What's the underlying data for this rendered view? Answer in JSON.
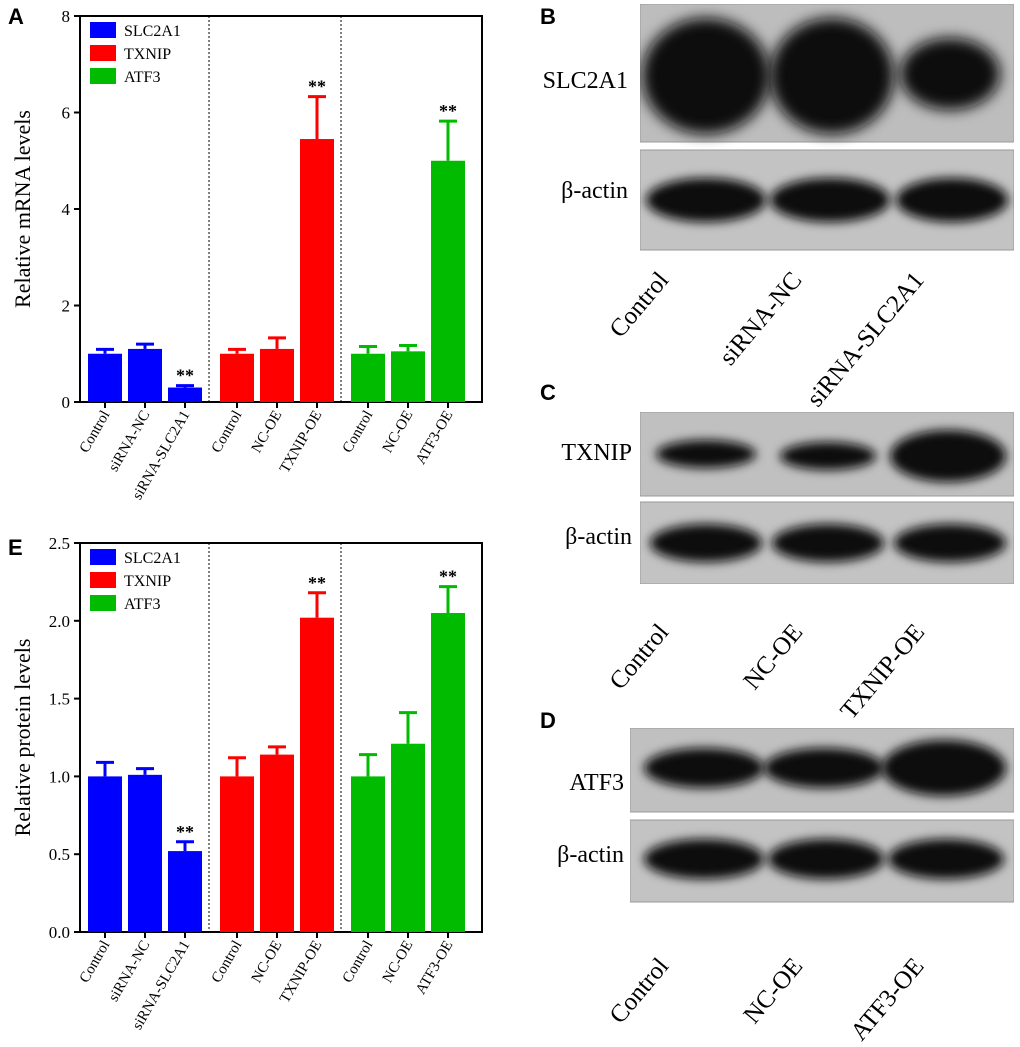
{
  "panels": {
    "a": {
      "letter": "A"
    },
    "e": {
      "letter": "E"
    },
    "b": {
      "letter": "B"
    },
    "c": {
      "letter": "C"
    },
    "d": {
      "letter": "D"
    }
  },
  "chart_data": [
    {
      "id": "A",
      "type": "bar",
      "ylabel": "Relative mRNA levels",
      "ylim": [
        0,
        8
      ],
      "yticks": [
        0,
        2,
        4,
        6,
        8
      ],
      "grid": false,
      "legend": {
        "placement": "top-left",
        "entries": [
          "SLC2A1",
          "TXNIP",
          "ATF3"
        ]
      },
      "groups": [
        {
          "series": "SLC2A1",
          "color": "#0000ff",
          "categories": [
            "Control",
            "siRNA-NC",
            "siRNA-SLC2A1"
          ],
          "values": [
            1.0,
            1.1,
            0.3
          ],
          "errors": [
            0.09,
            0.1,
            0.04
          ],
          "significance": [
            "",
            "",
            "**"
          ]
        },
        {
          "series": "TXNIP",
          "color": "#ff0000",
          "categories": [
            "Control",
            "NC-OE",
            "TXNIP-OE"
          ],
          "values": [
            1.0,
            1.1,
            5.45
          ],
          "errors": [
            0.09,
            0.23,
            0.88
          ],
          "significance": [
            "",
            "",
            "**"
          ]
        },
        {
          "series": "ATF3",
          "color": "#00bb00",
          "categories": [
            "Control",
            "NC-OE",
            "ATF3-OE"
          ],
          "values": [
            1.0,
            1.05,
            5.0
          ],
          "errors": [
            0.15,
            0.12,
            0.82
          ],
          "significance": [
            "",
            "",
            "**"
          ]
        }
      ]
    },
    {
      "id": "E",
      "type": "bar",
      "ylabel": "Relative protein levels",
      "ylim": [
        0,
        2.5
      ],
      "yticks": [
        "0.0",
        "0.5",
        "1.0",
        "1.5",
        "2.0",
        "2.5"
      ],
      "grid": false,
      "legend": {
        "placement": "top-left",
        "entries": [
          "SLC2A1",
          "TXNIP",
          "ATF3"
        ]
      },
      "groups": [
        {
          "series": "SLC2A1",
          "color": "#0000ff",
          "categories": [
            "Control",
            "siRNA-NC",
            "siRNA-SLC2A1"
          ],
          "values": [
            1.0,
            1.01,
            0.52
          ],
          "errors": [
            0.09,
            0.04,
            0.06
          ],
          "significance": [
            "",
            "",
            "**"
          ]
        },
        {
          "series": "TXNIP",
          "color": "#ff0000",
          "categories": [
            "Control",
            "NC-OE",
            "TXNIP-OE"
          ],
          "values": [
            1.0,
            1.14,
            2.02
          ],
          "errors": [
            0.12,
            0.05,
            0.16
          ],
          "significance": [
            "",
            "",
            "**"
          ]
        },
        {
          "series": "ATF3",
          "color": "#00bb00",
          "categories": [
            "Control",
            "NC-OE",
            "ATF3-OE"
          ],
          "values": [
            1.0,
            1.21,
            2.05
          ],
          "errors": [
            0.14,
            0.2,
            0.17
          ],
          "significance": [
            "",
            "",
            "**"
          ]
        }
      ]
    }
  ],
  "blots": {
    "b": {
      "rows": [
        "SLC2A1",
        "β-actin"
      ],
      "lanes": [
        "Control",
        "siRNA-NC",
        "siRNA-SLC2A1"
      ]
    },
    "c": {
      "rows": [
        "TXNIP",
        "β-actin"
      ],
      "lanes": [
        "Control",
        "NC-OE",
        "TXNIP-OE"
      ]
    },
    "d": {
      "rows": [
        "ATF3",
        "β-actin"
      ],
      "lanes": [
        "Control",
        "NC-OE",
        "ATF3-OE"
      ]
    }
  }
}
